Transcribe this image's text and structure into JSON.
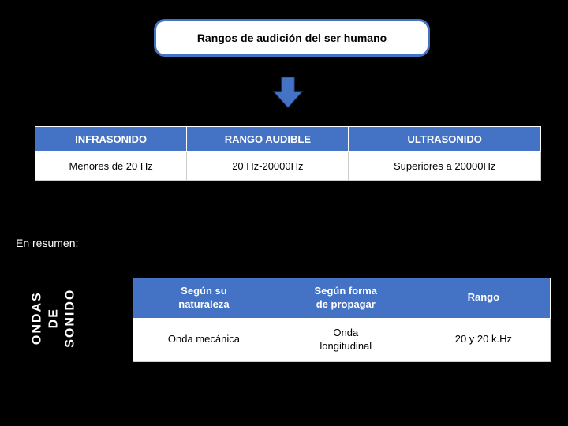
{
  "title": "Rangos de audición del ser humano",
  "arrow": {
    "fill": "#4472c4",
    "stroke": "#2f528f",
    "stroke_width": 1
  },
  "table1": {
    "type": "table",
    "header_bg": "#4472c4",
    "header_color": "#ffffff",
    "cell_bg": "#ffffff",
    "cell_color": "#000000",
    "columns": [
      {
        "label": "INFRASONIDO",
        "width_pct": 30
      },
      {
        "label": "RANGO AUDIBLE",
        "width_pct": 32
      },
      {
        "label": "ULTRASONIDO",
        "width_pct": 38
      }
    ],
    "rows": [
      [
        "Menores de 20 Hz",
        "20 Hz-20000Hz",
        "Superiores  a 20000Hz"
      ]
    ]
  },
  "summary_label": "En resumen:",
  "vertical_label_lines": [
    "ONDAS",
    "DE",
    "SONIDO"
  ],
  "table2": {
    "type": "table",
    "header_bg": "#4472c4",
    "header_color": "#ffffff",
    "cell_bg": "#ffffff",
    "cell_color": "#000000",
    "columns": [
      {
        "label": "Según su\nnaturaleza",
        "width_pct": 34
      },
      {
        "label": "Según forma\nde propagar",
        "width_pct": 34
      },
      {
        "label": "Rango",
        "width_pct": 32
      }
    ],
    "rows": [
      [
        "Onda mecánica",
        "Onda\nlongitudinal",
        "20 y 20 k.Hz"
      ]
    ]
  },
  "colors": {
    "background": "#000000",
    "accent": "#4472c4",
    "text_light": "#ffffff",
    "text_dark": "#000000"
  },
  "fonts": {
    "family": "Verdana",
    "title_size_pt": 14,
    "table_header_size_pt": 13,
    "table_cell_size_pt": 13,
    "vertical_size_pt": 16
  }
}
